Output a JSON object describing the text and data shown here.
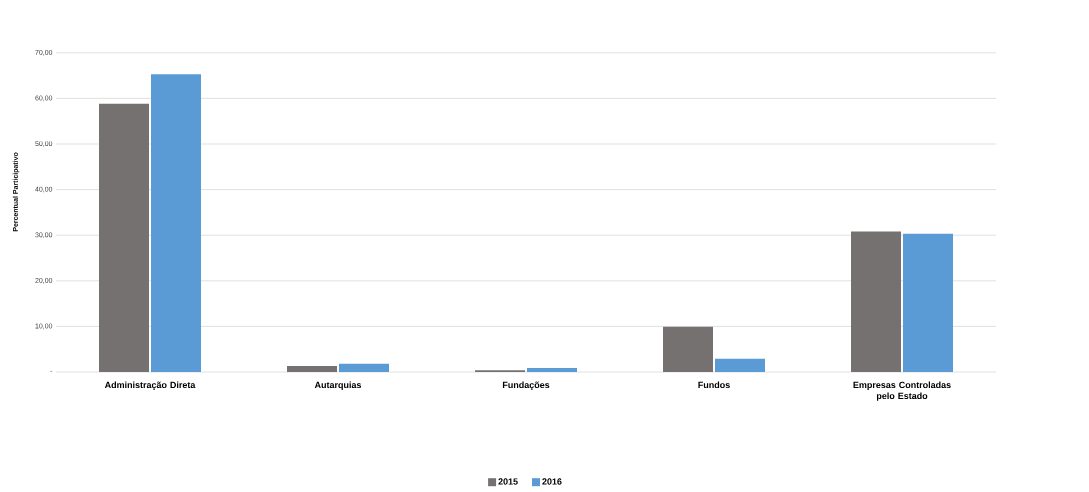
{
  "chart_data": {
    "type": "bar",
    "ylabel": "Percentual Participativo",
    "categories": [
      "Administração Direta",
      "Autarquias",
      "Fundações",
      "Fundos",
      "Empresas Controladas pelo Estado"
    ],
    "series": [
      {
        "name": "2015",
        "color": "#767171",
        "values": [
          58.8,
          1.3,
          0.4,
          9.9,
          30.8
        ]
      },
      {
        "name": "2016",
        "color": "#5b9bd5",
        "values": [
          65.3,
          1.8,
          0.9,
          2.9,
          30.3
        ]
      }
    ],
    "ylim": [
      0,
      70
    ],
    "yticks": [
      {
        "value": 0,
        "label": "-"
      },
      {
        "value": 10,
        "label": "10,00"
      },
      {
        "value": 20,
        "label": "20,00"
      },
      {
        "value": 30,
        "label": "30,00"
      },
      {
        "value": 40,
        "label": "40,00"
      },
      {
        "value": 50,
        "label": "50,00"
      },
      {
        "value": 60,
        "label": "60,00"
      },
      {
        "value": 70,
        "label": "70,00"
      }
    ],
    "grid": "y",
    "legend": "bottom"
  }
}
